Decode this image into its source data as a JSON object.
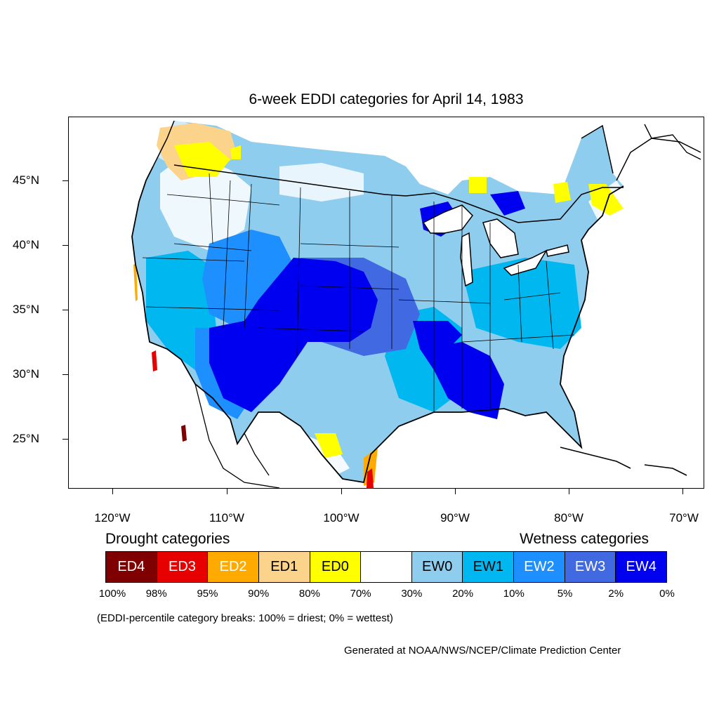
{
  "title": "6-week EDDI categories for April 14, 1983",
  "map": {
    "lat_labels": [
      "45°N",
      "40°N",
      "35°N",
      "30°N",
      "25°N"
    ],
    "lon_labels": [
      "120°W",
      "110°W",
      "100°W",
      "90°W",
      "80°W",
      "70°W"
    ],
    "colors": {
      "ED4": "#7f0000",
      "ED3": "#e60000",
      "ED2": "#ffaa00",
      "ED1": "#fcd38a",
      "ED0": "#ffff00",
      "neutral": "#ffffff",
      "EW0": "#8fcdef",
      "EW1": "#00b7f0",
      "EW2": "#1e8fff",
      "EW3": "#4169e1",
      "EW4": "#0000f0"
    }
  },
  "legend": {
    "drought_title": "Drought categories",
    "wetness_title": "Wetness categories",
    "categories": [
      {
        "label": "ED4",
        "color": "#7f0000",
        "text_color": "#ffffff"
      },
      {
        "label": "ED3",
        "color": "#e60000",
        "text_color": "#ffffff"
      },
      {
        "label": "ED2",
        "color": "#ffaa00",
        "text_color": "#ffffff"
      },
      {
        "label": "ED1",
        "color": "#fcd38a",
        "text_color": "#000000"
      },
      {
        "label": "ED0",
        "color": "#ffff00",
        "text_color": "#000000"
      },
      {
        "label": "",
        "color": "#ffffff",
        "text_color": "#000000"
      },
      {
        "label": "EW0",
        "color": "#8fcdef",
        "text_color": "#000000"
      },
      {
        "label": "EW1",
        "color": "#00b7f0",
        "text_color": "#000000"
      },
      {
        "label": "EW2",
        "color": "#1e8fff",
        "text_color": "#ffffff"
      },
      {
        "label": "EW3",
        "color": "#4169e1",
        "text_color": "#ffffff"
      },
      {
        "label": "EW4",
        "color": "#0000f0",
        "text_color": "#ffffff"
      }
    ],
    "breaks": [
      "100%",
      "98%",
      "95%",
      "90%",
      "80%",
      "70%",
      "30%",
      "20%",
      "10%",
      "5%",
      "2%",
      "0%"
    ]
  },
  "note": "(EDDI-percentile category breaks: 100% = driest; 0% = wettest)",
  "credit": "Generated at NOAA/NWS/NCEP/Climate Prediction Center"
}
